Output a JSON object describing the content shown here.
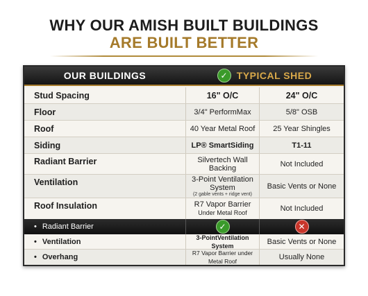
{
  "header": {
    "line1": "WHY OUR AMISH BUILT BUILDINGS",
    "line2": "ARE BUILT BETTER"
  },
  "table": {
    "col_ours": "OUR BUILDINGS",
    "col_typical": "TYPICAL SHED",
    "header_icon": "check-icon",
    "rows": [
      {
        "label": "Stud Spacing",
        "ours": "16\" O/C",
        "typical": "24\" O/C"
      },
      {
        "label": "Floor",
        "ours": "3/4\" PerformMax",
        "typical": "5/8\" OSB"
      },
      {
        "label": "Roof",
        "ours": "40 Year Metal Roof",
        "typical": "25 Year Shingles"
      },
      {
        "label": "Siding",
        "ours": "LP® SmartSiding",
        "typical": "T1-11"
      },
      {
        "label": "Radiant Barrier",
        "ours_line1": "Silvertech Wall",
        "ours_line2": "Backing",
        "typical": "Not Included"
      },
      {
        "label": "Ventilation",
        "ours_line1": "3-Point Ventilation",
        "ours_line2": "System",
        "ours_note": "(2 gable vents + ridge vent)",
        "typical": "Basic Vents or None"
      },
      {
        "label": "Roof Insulation",
        "ours_line1": "R7 Vapor Barrier",
        "ours_line2": "Under Metal Roof",
        "typical": "Not Included"
      }
    ],
    "bullet_rows": [
      {
        "label": "Radiant Barrier",
        "ours_icon": "check-icon",
        "typical_icon": "x-icon"
      },
      {
        "label": "Ventilation",
        "ours": "3-PointVentilation System",
        "typical": "Basic Vents or None"
      },
      {
        "label": "Overhang",
        "ours": "R7 Vapor Barrier under Metal Roof",
        "typical": "Usually None"
      }
    ]
  },
  "colors": {
    "gold": "#a57a2a",
    "dark": "#141414",
    "check_green": "#3a9a2a",
    "x_red": "#c8352a"
  }
}
